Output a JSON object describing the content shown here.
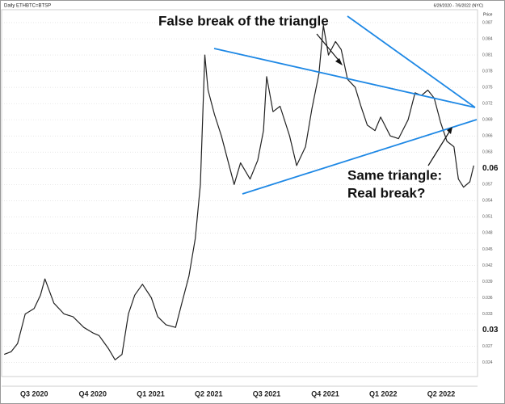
{
  "header": {
    "left": "Daily ETHBTC=BTSP",
    "right": "6/29/2020 - 7/6/2022 (NYC)",
    "axis_title": "Price"
  },
  "chart_data": {
    "type": "line",
    "x": [
      "2020-06-29",
      "2020-07-10",
      "2020-07-20",
      "2020-08-01",
      "2020-08-15",
      "2020-08-25",
      "2020-09-01",
      "2020-09-15",
      "2020-10-01",
      "2020-10-15",
      "2020-11-01",
      "2020-11-15",
      "2020-11-25",
      "2020-12-10",
      "2020-12-20",
      "2020-12-31",
      "2021-01-10",
      "2021-01-20",
      "2021-02-01",
      "2021-02-15",
      "2021-02-25",
      "2021-03-10",
      "2021-03-25",
      "2021-04-05",
      "2021-04-15",
      "2021-04-25",
      "2021-05-03",
      "2021-05-10",
      "2021-05-15",
      "2021-05-25",
      "2021-06-05",
      "2021-06-15",
      "2021-06-25",
      "2021-07-05",
      "2021-07-20",
      "2021-08-01",
      "2021-08-10",
      "2021-08-15",
      "2021-08-25",
      "2021-09-05",
      "2021-09-20",
      "2021-10-01",
      "2021-10-15",
      "2021-10-25",
      "2021-11-05",
      "2021-11-12",
      "2021-11-20",
      "2021-12-01",
      "2021-12-10",
      "2021-12-20",
      "2022-01-01",
      "2022-01-10",
      "2022-01-20",
      "2022-02-01",
      "2022-02-10",
      "2022-02-25",
      "2022-03-10",
      "2022-03-25",
      "2022-04-05",
      "2022-04-15",
      "2022-04-25",
      "2022-05-05",
      "2022-05-15",
      "2022-05-25",
      "2022-06-05",
      "2022-06-12",
      "2022-06-20",
      "2022-06-30",
      "2022-07-06"
    ],
    "series": [
      {
        "name": "ETHBTC",
        "color": "#222222",
        "values": [
          0.0255,
          0.026,
          0.0275,
          0.033,
          0.034,
          0.0365,
          0.0395,
          0.035,
          0.033,
          0.0325,
          0.0305,
          0.0295,
          0.029,
          0.0265,
          0.0245,
          0.0255,
          0.033,
          0.0365,
          0.0385,
          0.036,
          0.0325,
          0.031,
          0.0305,
          0.0355,
          0.04,
          0.047,
          0.057,
          0.081,
          0.0745,
          0.07,
          0.066,
          0.0615,
          0.057,
          0.061,
          0.058,
          0.0615,
          0.067,
          0.077,
          0.0705,
          0.0715,
          0.066,
          0.0605,
          0.064,
          0.071,
          0.0775,
          0.0865,
          0.081,
          0.0835,
          0.082,
          0.0765,
          0.075,
          0.0715,
          0.068,
          0.067,
          0.0695,
          0.066,
          0.0655,
          0.069,
          0.074,
          0.0735,
          0.0745,
          0.073,
          0.0685,
          0.065,
          0.064,
          0.058,
          0.0565,
          0.0575,
          0.0605
        ]
      }
    ],
    "xlim": [
      "2020-06-25",
      "2022-07-12"
    ],
    "xticks": [
      {
        "value": "2020-08-15",
        "label": "Q3 2020"
      },
      {
        "value": "2020-11-15",
        "label": "Q4 2020"
      },
      {
        "value": "2021-02-14",
        "label": "Q1 2021"
      },
      {
        "value": "2021-05-16",
        "label": "Q2 2021"
      },
      {
        "value": "2021-08-15",
        "label": "Q3 2021"
      },
      {
        "value": "2021-11-15",
        "label": "Q4 2021"
      },
      {
        "value": "2022-02-14",
        "label": "Q1 2022"
      },
      {
        "value": "2022-05-16",
        "label": "Q2 2022"
      }
    ],
    "ylim": [
      0.0214,
      0.0894
    ],
    "yticks": [
      0.024,
      0.027,
      0.03,
      0.033,
      0.036,
      0.039,
      0.042,
      0.045,
      0.048,
      0.051,
      0.054,
      0.057,
      0.06,
      0.063,
      0.066,
      0.069,
      0.072,
      0.075,
      0.078,
      0.081,
      0.084,
      0.087
    ],
    "grid": true,
    "annotations": [
      "False break of the triangle",
      "Same triangle:",
      "Real break?"
    ]
  }
}
